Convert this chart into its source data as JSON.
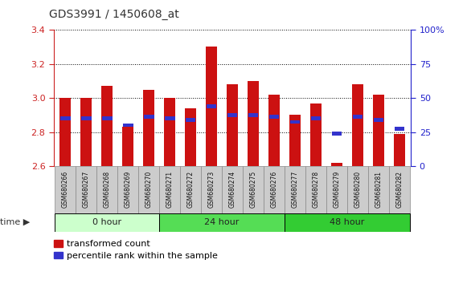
{
  "title": "GDS3991 / 1450608_at",
  "samples": [
    "GSM680266",
    "GSM680267",
    "GSM680268",
    "GSM680269",
    "GSM680270",
    "GSM680271",
    "GSM680272",
    "GSM680273",
    "GSM680274",
    "GSM680275",
    "GSM680276",
    "GSM680277",
    "GSM680278",
    "GSM680279",
    "GSM680280",
    "GSM680281",
    "GSM680282"
  ],
  "red_values": [
    3.0,
    3.0,
    3.07,
    2.83,
    3.05,
    3.0,
    2.94,
    3.3,
    3.08,
    3.1,
    3.02,
    2.9,
    2.97,
    2.62,
    3.08,
    3.02,
    2.79
  ],
  "blue_values": [
    2.88,
    2.88,
    2.88,
    2.84,
    2.89,
    2.88,
    2.87,
    2.95,
    2.9,
    2.9,
    2.89,
    2.86,
    2.88,
    2.79,
    2.89,
    2.87,
    2.82
  ],
  "ylim_left": [
    2.6,
    3.4
  ],
  "ylim_right": [
    0,
    100
  ],
  "yticks_left": [
    2.6,
    2.8,
    3.0,
    3.2,
    3.4
  ],
  "yticks_right": [
    0,
    25,
    50,
    75,
    100
  ],
  "ytick_right_labels": [
    "0",
    "25",
    "50",
    "75",
    "100%"
  ],
  "bar_color": "#cc1111",
  "blue_color": "#3333cc",
  "baseline": 2.6,
  "bar_width": 0.55,
  "bg_plot": "#ffffff",
  "title_color": "#333333",
  "left_tick_color": "#cc2222",
  "right_tick_color": "#2222cc",
  "group_defs": [
    {
      "label": "0 hour",
      "start": 0,
      "end": 4,
      "color": "#ccffcc"
    },
    {
      "label": "24 hour",
      "start": 5,
      "end": 10,
      "color": "#55dd55"
    },
    {
      "label": "48 hour",
      "start": 11,
      "end": 16,
      "color": "#33cc33"
    }
  ]
}
